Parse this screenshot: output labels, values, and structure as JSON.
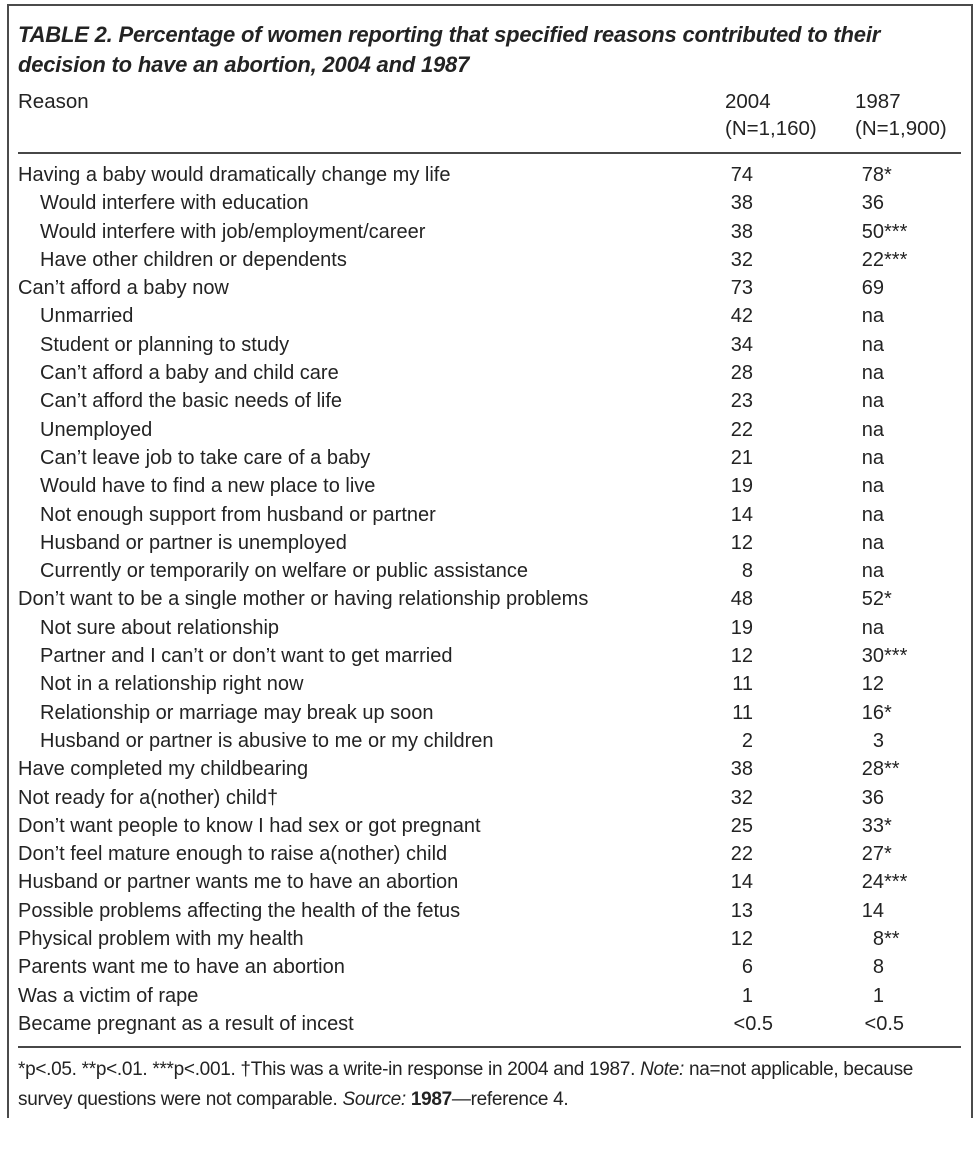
{
  "table": {
    "title_line1": "TABLE 2. Percentage of women reporting that specified reasons contributed to their",
    "title_line2": "decision to have an abortion, 2004 and 1987",
    "header": {
      "reason": "Reason",
      "col2004_year": "2004",
      "col2004_n": "(N=1,160)",
      "col1987_year": "1987",
      "col1987_n": "(N=1,900)"
    },
    "rows": [
      {
        "label": "Having a baby would dramatically change my life",
        "indent": false,
        "v2004": "74",
        "v1987": "78",
        "sig": "*"
      },
      {
        "label": "Would interfere with education",
        "indent": true,
        "v2004": "38",
        "v1987": "36",
        "sig": ""
      },
      {
        "label": "Would interfere with job/employment/career",
        "indent": true,
        "v2004": "38",
        "v1987": "50",
        "sig": "***"
      },
      {
        "label": "Have other children or dependents",
        "indent": true,
        "v2004": "32",
        "v1987": "22",
        "sig": "***"
      },
      {
        "label": "Can’t afford a baby now",
        "indent": false,
        "v2004": "73",
        "v1987": "69",
        "sig": ""
      },
      {
        "label": "Unmarried",
        "indent": true,
        "v2004": "42",
        "v1987": "na",
        "sig": ""
      },
      {
        "label": "Student or planning to study",
        "indent": true,
        "v2004": "34",
        "v1987": "na",
        "sig": ""
      },
      {
        "label": "Can’t afford a baby and child care",
        "indent": true,
        "v2004": "28",
        "v1987": "na",
        "sig": ""
      },
      {
        "label": "Can’t afford the basic needs of life",
        "indent": true,
        "v2004": "23",
        "v1987": "na",
        "sig": ""
      },
      {
        "label": "Unemployed",
        "indent": true,
        "v2004": "22",
        "v1987": "na",
        "sig": ""
      },
      {
        "label": "Can’t leave job to take care of a baby",
        "indent": true,
        "v2004": "21",
        "v1987": "na",
        "sig": ""
      },
      {
        "label": "Would have to find a new place to live",
        "indent": true,
        "v2004": "19",
        "v1987": "na",
        "sig": ""
      },
      {
        "label": "Not enough support from husband or partner",
        "indent": true,
        "v2004": "14",
        "v1987": "na",
        "sig": ""
      },
      {
        "label": "Husband or partner is unemployed",
        "indent": true,
        "v2004": "12",
        "v1987": "na",
        "sig": ""
      },
      {
        "label": "Currently or temporarily on welfare or public assistance",
        "indent": true,
        "v2004": "8",
        "v1987": "na",
        "sig": ""
      },
      {
        "label": "Don’t want to be a single mother or having relationship problems",
        "indent": false,
        "v2004": "48",
        "v1987": "52",
        "sig": "*"
      },
      {
        "label": "Not sure about relationship",
        "indent": true,
        "v2004": "19",
        "v1987": "na",
        "sig": ""
      },
      {
        "label": "Partner and I can’t or don’t want to get married",
        "indent": true,
        "v2004": "12",
        "v1987": "30",
        "sig": "***"
      },
      {
        "label": "Not in a relationship right now",
        "indent": true,
        "v2004": "11",
        "v1987": "12",
        "sig": ""
      },
      {
        "label": "Relationship or marriage may break up soon",
        "indent": true,
        "v2004": "11",
        "v1987": "16",
        "sig": "*"
      },
      {
        "label": "Husband or partner is abusive to me or my children",
        "indent": true,
        "v2004": "2",
        "v1987": "3",
        "sig": ""
      },
      {
        "label": "Have completed my childbearing",
        "indent": false,
        "v2004": "38",
        "v1987": "28",
        "sig": "**"
      },
      {
        "label": "Not ready for a(nother) child†",
        "indent": false,
        "v2004": "32",
        "v1987": "36",
        "sig": ""
      },
      {
        "label": "Don’t want people to know I had sex or got pregnant",
        "indent": false,
        "v2004": "25",
        "v1987": "33",
        "sig": "*"
      },
      {
        "label": "Don’t feel mature enough to raise a(nother) child",
        "indent": false,
        "v2004": "22",
        "v1987": "27",
        "sig": "*"
      },
      {
        "label": "Husband or partner wants me to have an abortion",
        "indent": false,
        "v2004": "14",
        "v1987": "24",
        "sig": "***"
      },
      {
        "label": "Possible problems affecting the health of the fetus",
        "indent": false,
        "v2004": "13",
        "v1987": "14",
        "sig": ""
      },
      {
        "label": "Physical problem with my health",
        "indent": false,
        "v2004": "12",
        "v1987": "8",
        "sig": "**"
      },
      {
        "label": "Parents want me to have an abortion",
        "indent": false,
        "v2004": "6",
        "v1987": "8",
        "sig": ""
      },
      {
        "label": "Was a victim of rape",
        "indent": false,
        "v2004": "1",
        "v1987": "1",
        "sig": ""
      },
      {
        "label": "Became pregnant as a result of incest",
        "indent": false,
        "v2004": "<0.5",
        "v1987": "<0.5",
        "sig": ""
      }
    ],
    "footnote": {
      "line1_part1": "*p<.05. **p<.01. ***p<.001. †This was a write-in response in 2004 and 1987. ",
      "line1_note_label": "Note:",
      "line1_part2": " na=not applicable, because",
      "line2_part1": "survey questions were not comparable. ",
      "line2_source_label": "Source: ",
      "line2_bold": "1987",
      "line2_part2": "—reference 4."
    }
  }
}
